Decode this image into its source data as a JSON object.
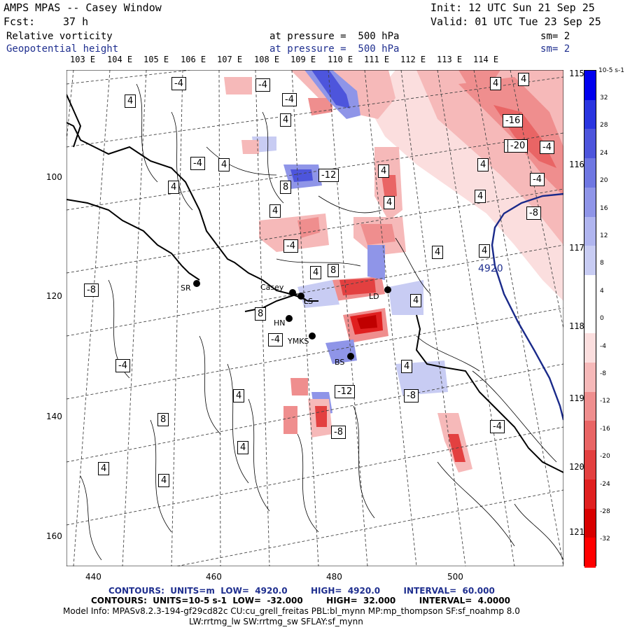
{
  "header": {
    "model": "AMPS MPAS -- Casey Window",
    "init": "Init: 12 UTC Sun 21 Sep 25",
    "fcst_label": "Fcst:",
    "fcst_value": "37 h",
    "valid": "Valid: 01 UTC Tue 23 Sep 25",
    "field1": "Relative vorticity",
    "field1_level": "at pressure =  500 hPa",
    "field1_sm": "sm= 2",
    "field2": "Geopotential height",
    "field2_level": "at pressure =  500 hPa",
    "field2_sm": "sm= 2"
  },
  "lon_labels": [
    "103 E",
    "104 E",
    "105 E",
    "106 E",
    "107 E",
    "108 E",
    "109 E",
    "110 E",
    "111 E",
    "112 E",
    "113 E",
    "114 E"
  ],
  "lat_labels_right": [
    "115 E",
    "116 E",
    "117 E",
    "118 E",
    "119 E",
    "120 E",
    "121 E"
  ],
  "x_ticks": [
    "440",
    "460",
    "480",
    "500"
  ],
  "y_ticks": [
    "100",
    "120",
    "140",
    "160"
  ],
  "colorbar": {
    "unit": "10-5 s-1",
    "labels": [
      "32",
      "28",
      "24",
      "20",
      "16",
      "12",
      "8",
      "4",
      "0",
      "-4",
      "-8",
      "-12",
      "-16",
      "-20",
      "-24",
      "-28",
      "-32"
    ]
  },
  "stations": [
    {
      "name": "SR"
    },
    {
      "name": "Casey"
    },
    {
      "name": "HN"
    },
    {
      "name": "YMKS"
    },
    {
      "name": "LD"
    },
    {
      "name": "LS"
    },
    {
      "name": "BS"
    }
  ],
  "height_contour_label": "4920",
  "contour_labels": [
    "-4",
    "-4",
    "4",
    "-4",
    "4",
    "4",
    "4",
    "8",
    "-4",
    "4",
    "-12",
    "4",
    "8",
    "4",
    "4",
    "-4",
    "4",
    "-4",
    "-4",
    "4",
    "4",
    "-4",
    "4",
    "4",
    "8",
    "4",
    "4",
    "8",
    "-4",
    "-8",
    "-16",
    "-20",
    "4",
    "4",
    "-12",
    "-8",
    "-8",
    "-4",
    "-8",
    "-4",
    "4",
    "4",
    "4",
    "8"
  ],
  "footer": {
    "line1_label": "CONTOURS:  UNITS=m  LOW=  4920.0        HIGH=  4920.0        INTERVAL=  60.000",
    "line2_label": "CONTOURS:  UNITS=10-5 s-1  LOW=  -32.000        HIGH=  32.000        INTERVAL=  4.0000",
    "line3": "Model Info: MPASv8.2.3-194-gf29cd82c CU:cu_grell_freitas PBL:bl_mynn MP:mp_thompson SF:sf_noahmp 8.0",
    "line4": "LW:rrtmg_lw SW:rrtmg_sw SFLAY:sf_mynn"
  },
  "colors": {
    "navy": "#1f2f8f",
    "blue_dark": "#0000ee",
    "red_dark": "#ff0000",
    "height_contour": "#1a2a8a"
  }
}
